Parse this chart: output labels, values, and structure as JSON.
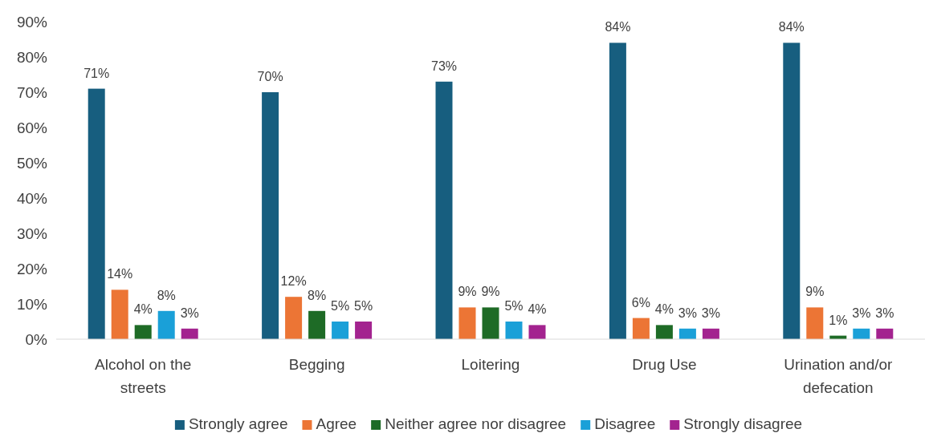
{
  "chart_data": {
    "type": "bar",
    "categories": [
      "Alcohol on the streets",
      "Begging",
      "Loitering",
      "Drug Use",
      "Urination and/or defecation"
    ],
    "series": [
      {
        "name": "Strongly agree",
        "color": "#175e7f",
        "values": [
          71,
          70,
          73,
          84,
          84
        ]
      },
      {
        "name": "Agree",
        "color": "#ec7535",
        "values": [
          14,
          12,
          9,
          6,
          9
        ]
      },
      {
        "name": "Neither agree nor disagree",
        "color": "#1e6b26",
        "values": [
          4,
          8,
          9,
          4,
          1
        ]
      },
      {
        "name": "Disagree",
        "color": "#1aa0d8",
        "values": [
          8,
          5,
          5,
          3,
          3
        ]
      },
      {
        "name": "Strongly disagree",
        "color": "#a3238f",
        "values": [
          3,
          5,
          4,
          3,
          3
        ]
      }
    ],
    "ylim": [
      0,
      90
    ],
    "yticks": [
      {
        "value": 0,
        "label": "0%"
      },
      {
        "value": 10,
        "label": "10%"
      },
      {
        "value": 20,
        "label": "20%"
      },
      {
        "value": 30,
        "label": "30%"
      },
      {
        "value": 40,
        "label": "40%"
      },
      {
        "value": 50,
        "label": "50%"
      },
      {
        "value": 60,
        "label": "60%"
      },
      {
        "value": 70,
        "label": "70%"
      },
      {
        "value": 80,
        "label": "80%"
      },
      {
        "value": 90,
        "label": "90%"
      }
    ],
    "value_labels": [
      [
        "71%",
        "70%",
        "73%",
        "84%",
        "84%"
      ],
      [
        "14%",
        "12%",
        "9%",
        "6%",
        "9%"
      ],
      [
        "4%",
        "8%",
        "9%",
        "4%",
        "1%"
      ],
      [
        "8%",
        "5%",
        "5%",
        "3%",
        "3%"
      ],
      [
        "3%",
        "5%",
        "4%",
        "3%",
        "3%"
      ]
    ],
    "grid": false,
    "legend": "bottom"
  }
}
